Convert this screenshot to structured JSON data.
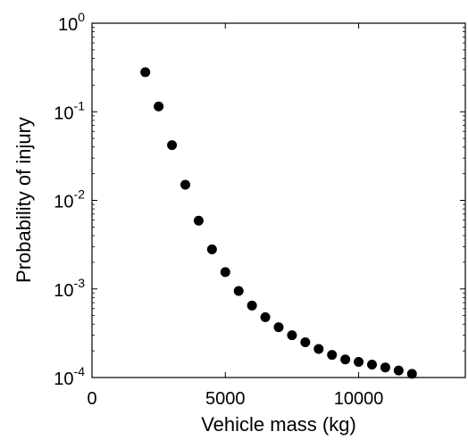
{
  "chart_data": {
    "type": "scatter",
    "title": "",
    "xlabel": "Vehicle mass (kg)",
    "ylabel": "Probability of injury",
    "xscale": "linear",
    "yscale": "log",
    "xlim": [
      0,
      14000
    ],
    "ylim": [
      0.0001,
      1
    ],
    "grid": false,
    "legend": "none",
    "marker_color": "#000000",
    "x_ticks": [
      {
        "value": 0,
        "label": "0"
      },
      {
        "value": 5000,
        "label": "5000"
      },
      {
        "value": 10000,
        "label": "10000"
      }
    ],
    "y_ticks": [
      {
        "value": 1,
        "base": "10",
        "exp": "0"
      },
      {
        "value": 0.1,
        "base": "10",
        "exp": "-1"
      },
      {
        "value": 0.01,
        "base": "10",
        "exp": "-2"
      },
      {
        "value": 0.001,
        "base": "10",
        "exp": "-3"
      },
      {
        "value": 0.0001,
        "base": "10",
        "exp": "-4"
      }
    ],
    "points": [
      {
        "x": 2000,
        "y": 0.28
      },
      {
        "x": 2500,
        "y": 0.115
      },
      {
        "x": 3000,
        "y": 0.042
      },
      {
        "x": 3500,
        "y": 0.015
      },
      {
        "x": 4000,
        "y": 0.0059
      },
      {
        "x": 4500,
        "y": 0.0028
      },
      {
        "x": 5000,
        "y": 0.00155
      },
      {
        "x": 5500,
        "y": 0.00095
      },
      {
        "x": 6000,
        "y": 0.00065
      },
      {
        "x": 6500,
        "y": 0.00048
      },
      {
        "x": 7000,
        "y": 0.00037
      },
      {
        "x": 7500,
        "y": 0.0003
      },
      {
        "x": 8000,
        "y": 0.00025
      },
      {
        "x": 8500,
        "y": 0.00021
      },
      {
        "x": 9000,
        "y": 0.00018
      },
      {
        "x": 9500,
        "y": 0.00016
      },
      {
        "x": 10000,
        "y": 0.00015
      },
      {
        "x": 10500,
        "y": 0.00014
      },
      {
        "x": 11000,
        "y": 0.00013
      },
      {
        "x": 11500,
        "y": 0.00012
      },
      {
        "x": 12000,
        "y": 0.00011
      }
    ]
  }
}
